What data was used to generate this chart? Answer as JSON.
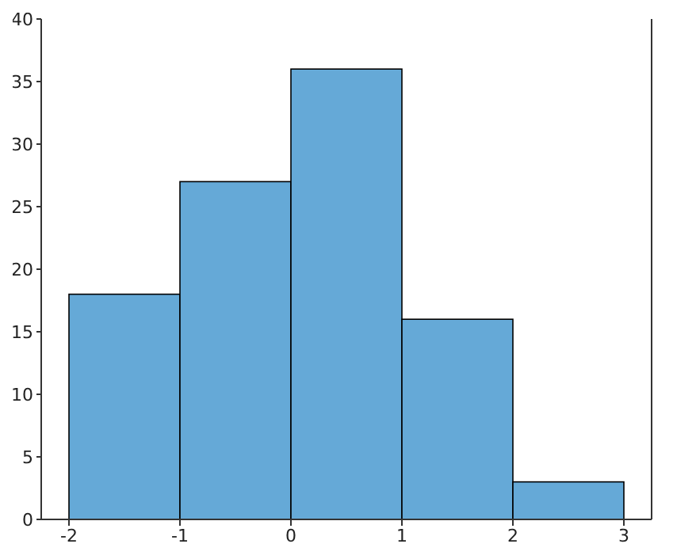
{
  "chart_data": {
    "type": "histogram",
    "bins": [
      -2,
      -1,
      0,
      1,
      2,
      3
    ],
    "values": [
      18,
      27,
      36,
      16,
      3
    ],
    "color": "#65a9d7",
    "xlim": [
      -2.25,
      3.25
    ],
    "xticks": [
      -2,
      -1,
      0,
      1,
      2,
      3
    ],
    "ylim": [
      0,
      40
    ],
    "yticks": [
      0,
      5,
      10,
      15,
      20,
      25,
      30,
      35,
      40
    ],
    "grid": false
  }
}
